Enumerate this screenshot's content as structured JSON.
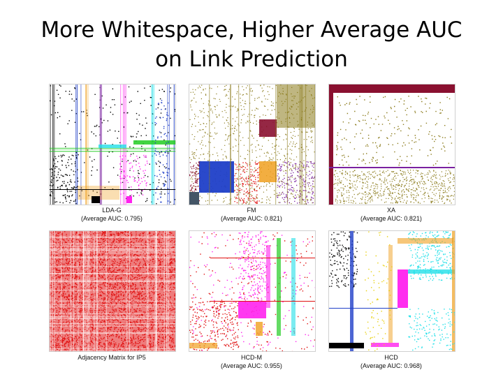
{
  "slide": {
    "title_line1": "More Whitespace, Higher Average AUC",
    "title_line2": "on Link Prediction"
  },
  "panels": [
    {
      "name": "LDA-G",
      "label": "LDA-G",
      "metric": "(Average AUC: 0.795)"
    },
    {
      "name": "FM",
      "label": "FM",
      "metric": "(Average AUC: 0.821)"
    },
    {
      "name": "XA",
      "label": "XA",
      "metric": "(Average AUC: 0.821)"
    },
    {
      "name": "Adjacency",
      "label": "Adjacency Matrix for IP5",
      "metric": ""
    },
    {
      "name": "HCD-M",
      "label": "HCD-M",
      "metric": "(Average AUC: 0.955)"
    },
    {
      "name": "HCD",
      "label": "HCD",
      "metric": "(Average AUC: 0.968)"
    }
  ],
  "colors": {
    "red": "#e01010",
    "olive": "#8a7a1a",
    "blue": "#1f3fc8",
    "magenta": "#ff22ee",
    "cyan": "#22e0e8",
    "green": "#22cc22",
    "orange": "#f0a020",
    "maroon": "#8a1030",
    "purple": "#7a20a0",
    "black": "#000000",
    "yellow": "#e8d010"
  }
}
